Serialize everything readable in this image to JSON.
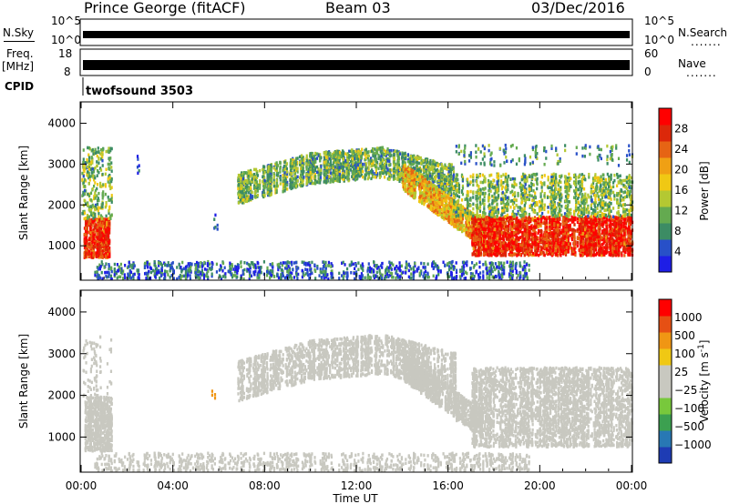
{
  "header": {
    "station": "Prince George (fitACF)",
    "beam": "Beam 03",
    "date": "03/Dec/2016"
  },
  "summary_panels": {
    "nsky_label": "N.Sky",
    "nsky_ticks": [
      "10^5",
      "10^0"
    ],
    "nsearch_label": "N.Search",
    "nsearch_ticks": [
      "10^5",
      "10^0"
    ],
    "freq_label": "Freq.",
    "freq_unit": "[MHz]",
    "freq_ticks": [
      "18",
      "8"
    ],
    "nave_label": "Nave",
    "nave_ticks": [
      "60",
      "0"
    ],
    "cpid_label": "CPID",
    "cpid_value": "twofsound 3503",
    "legend_dots": "......."
  },
  "colors": {
    "power_scale": [
      "#1e1ee6",
      "#2850c8",
      "#3c8c64",
      "#64aa50",
      "#b4c832",
      "#f0c814",
      "#f0a014",
      "#e66414",
      "#dc280a",
      "#ff0000"
    ],
    "velocity_scale": [
      "#1e3cb4",
      "#2878b4",
      "#3ca050",
      "#78c83c",
      "#c8c8c0",
      "#c8c8c0",
      "#f0c814",
      "#f09614",
      "#e65014",
      "#ff0000"
    ]
  },
  "chart_data": [
    {
      "type": "heatmap",
      "panel": "power",
      "title": "",
      "xlabel": "",
      "ylabel": "Slant Range [km]",
      "xlim": [
        0,
        24
      ],
      "ylim": [
        180,
        4500
      ],
      "x_ticks": [
        "00:00",
        "04:00",
        "08:00",
        "12:00",
        "16:00",
        "20:00",
        "00:00"
      ],
      "y_ticks": [
        1000,
        2000,
        3000,
        4000
      ],
      "colorbar": {
        "label": "Power [dB]",
        "range": [
          0,
          32
        ],
        "ticks": [
          "4",
          "8",
          "12",
          "16",
          "20",
          "24",
          "28"
        ]
      },
      "features": [
        {
          "name": "early echo",
          "t": [
            0.1,
            1.2
          ],
          "range_km": [
            700,
            1800
          ],
          "power_db": 26
        },
        {
          "name": "early high echo",
          "t": [
            0.0,
            1.3
          ],
          "range_km": [
            1800,
            3500
          ],
          "power_db": 12
        },
        {
          "name": "main band",
          "t": [
            6.8,
            16.3
          ],
          "range_start_km": [
            2300,
            2700,
            2900,
            2600
          ],
          "thickness_km": 500,
          "power_db": 10
        },
        {
          "name": "descending band",
          "t": [
            14.0,
            17.5
          ],
          "range_start_km": [
            2500,
            1000
          ],
          "thickness_km": 700,
          "power_db": 20
        },
        {
          "name": "evening band",
          "t": [
            17.0,
            24.0
          ],
          "range_km": [
            800,
            1800
          ],
          "power_db": 28
        },
        {
          "name": "evening upper band",
          "t": [
            16.2,
            24.0
          ],
          "range_km": [
            1800,
            2800
          ],
          "power_db": 12
        },
        {
          "name": "near-range echoes",
          "t": [
            0.5,
            19.5
          ],
          "range_km": [
            180,
            700
          ],
          "power_db": 6
        }
      ]
    },
    {
      "type": "heatmap",
      "panel": "velocity",
      "title": "",
      "xlabel": "Time UT",
      "ylabel": "Slant Range [km]",
      "xlim": [
        0,
        24
      ],
      "ylim": [
        180,
        4500
      ],
      "x_ticks": [
        "00:00",
        "04:00",
        "08:00",
        "12:00",
        "16:00",
        "20:00",
        "00:00"
      ],
      "y_ticks": [
        1000,
        2000,
        3000,
        4000
      ],
      "colorbar": {
        "label": "Velocity [m s^-1]",
        "range": [
          -1250,
          1250
        ],
        "ticks": [
          "1000",
          "500",
          "100",
          "25",
          "−25",
          "−100",
          "−500",
          "−1000"
        ]
      },
      "features": [
        {
          "name": "early echo",
          "t": [
            0.1,
            1.3
          ],
          "range_km": [
            700,
            2000
          ],
          "velocity": 0
        },
        {
          "name": "main band",
          "t": [
            6.8,
            16.3
          ],
          "velocity": 0
        },
        {
          "name": "evening band",
          "t": [
            17.0,
            24.0
          ],
          "range_km": [
            800,
            2800
          ],
          "velocity": -25
        },
        {
          "name": "ground scatter",
          "t": [
            0.5,
            19.5
          ],
          "range_km": [
            180,
            700
          ],
          "velocity": 50
        }
      ]
    }
  ]
}
